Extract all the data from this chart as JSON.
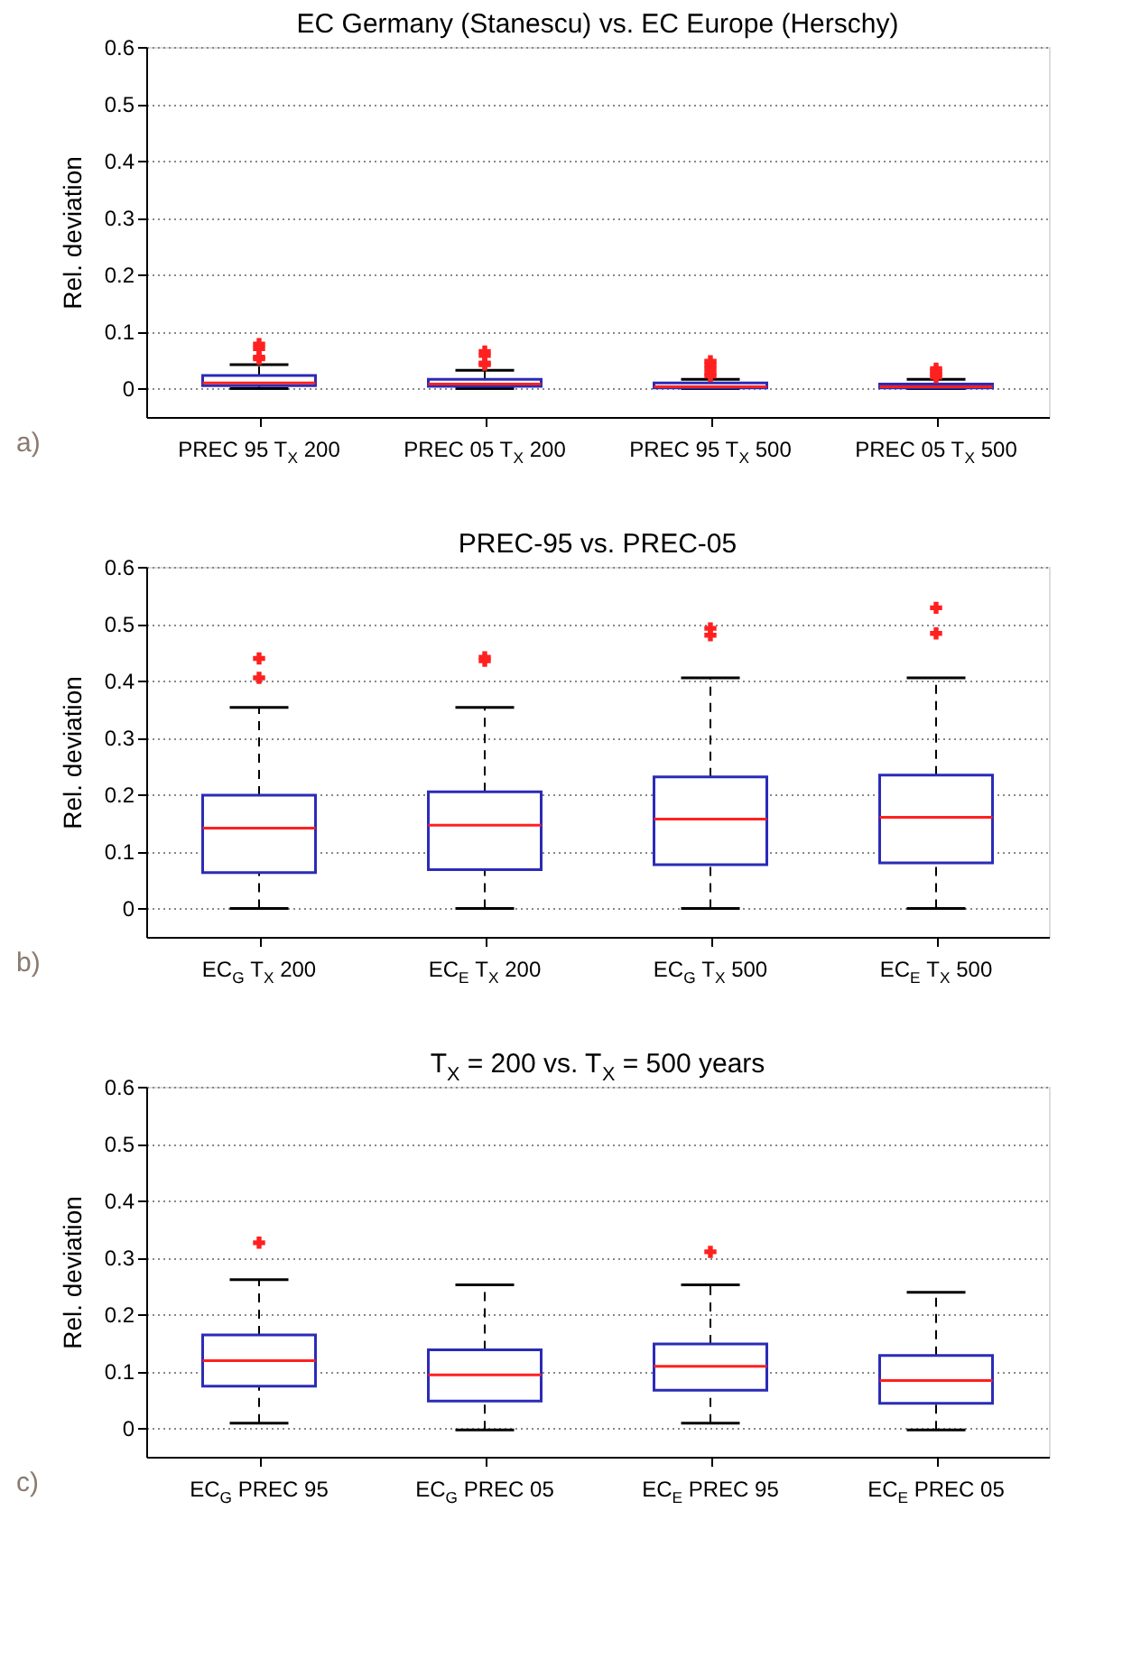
{
  "chart_data": [
    {
      "type": "box",
      "title": "EC Germany (Stanescu) vs. EC Europe (Herschy)",
      "ylabel": "Rel. deviation",
      "annotations": [
        "a)"
      ],
      "grid": "y",
      "ylim": [
        -0.05,
        0.6
      ],
      "yticks": [
        0,
        0.1,
        0.2,
        0.3,
        0.4,
        0.5,
        0.6
      ],
      "categories": [
        "PREC 95 T$_{X}$ 200",
        "PREC 05 T$_{X}$ 200",
        "PREC 95 T$_{X}$ 500",
        "PREC 05 T$_{X}$ 500"
      ],
      "series": [
        {
          "color": "#2b2bb8",
          "boxes": [
            {
              "low": 0,
              "q1": 0.005,
              "median": 0.01,
              "q3": 0.023,
              "high": 0.042,
              "outliers": [
                0.052,
                0.055,
                0.07,
                0.078
              ]
            },
            {
              "low": 0,
              "q1": 0.004,
              "median": 0.008,
              "q3": 0.016,
              "high": 0.032,
              "outliers": [
                0.042,
                0.045,
                0.058,
                0.065
              ]
            },
            {
              "low": 0,
              "q1": 0.001,
              "median": 0.003,
              "q3": 0.01,
              "high": 0.016,
              "outliers": [
                0.022,
                0.027,
                0.035,
                0.042,
                0.048
              ]
            },
            {
              "low": 0,
              "q1": 0.001,
              "median": 0.003,
              "q3": 0.008,
              "high": 0.016,
              "outliers": [
                0.02,
                0.025,
                0.03,
                0.035
              ]
            }
          ]
        }
      ]
    },
    {
      "type": "box",
      "title": "PREC-95 vs. PREC-05",
      "ylabel": "Rel. deviation",
      "annotations": [
        "b)"
      ],
      "grid": "y",
      "ylim": [
        -0.05,
        0.6
      ],
      "yticks": [
        0,
        0.1,
        0.2,
        0.3,
        0.4,
        0.5,
        0.6
      ],
      "categories": [
        "EC$_{G}$ T$_{X}$ 200",
        "EC$_{E}$ T$_{X}$ 200",
        "EC$_{G}$ T$_{X}$ 500",
        "EC$_{E}$ T$_{X}$ 500"
      ],
      "series": [
        {
          "color": "#2b2bb8",
          "boxes": [
            {
              "low": 0,
              "q1": 0.063,
              "median": 0.141,
              "q3": 0.199,
              "high": 0.353,
              "outliers": [
                0.405,
                0.439
              ]
            },
            {
              "low": 0,
              "q1": 0.068,
              "median": 0.146,
              "q3": 0.205,
              "high": 0.353,
              "outliers": [
                0.435,
                0.441
              ]
            },
            {
              "low": 0,
              "q1": 0.077,
              "median": 0.157,
              "q3": 0.231,
              "high": 0.405,
              "outliers": [
                0.48,
                0.492
              ]
            },
            {
              "low": 0,
              "q1": 0.08,
              "median": 0.16,
              "q3": 0.234,
              "high": 0.405,
              "outliers": [
                0.483,
                0.528
              ]
            }
          ]
        }
      ]
    },
    {
      "type": "box",
      "title": "T$_{X}$ = 200 vs. T$_{X}$ = 500 years",
      "ylabel": "Rel. deviation",
      "annotations": [
        "c)"
      ],
      "grid": "y",
      "ylim": [
        -0.05,
        0.6
      ],
      "yticks": [
        0,
        0.1,
        0.2,
        0.3,
        0.4,
        0.5,
        0.6
      ],
      "categories": [
        "EC$_{G}$ PREC 95",
        "EC$_{G}$ PREC 05",
        "EC$_{E}$ PREC 95",
        "EC$_{E}$ PREC 05"
      ],
      "series": [
        {
          "color": "#2b2bb8",
          "boxes": [
            {
              "low": 0.009,
              "q1": 0.074,
              "median": 0.119,
              "q3": 0.164,
              "high": 0.261,
              "outliers": [
                0.326
              ]
            },
            {
              "low": -0.003,
              "q1": 0.048,
              "median": 0.094,
              "q3": 0.138,
              "high": 0.252
            },
            {
              "low": 0.009,
              "q1": 0.067,
              "median": 0.109,
              "q3": 0.148,
              "high": 0.252,
              "outliers": [
                0.31
              ]
            },
            {
              "low": -0.003,
              "q1": 0.044,
              "median": 0.084,
              "q3": 0.128,
              "high": 0.239
            }
          ]
        }
      ]
    }
  ]
}
